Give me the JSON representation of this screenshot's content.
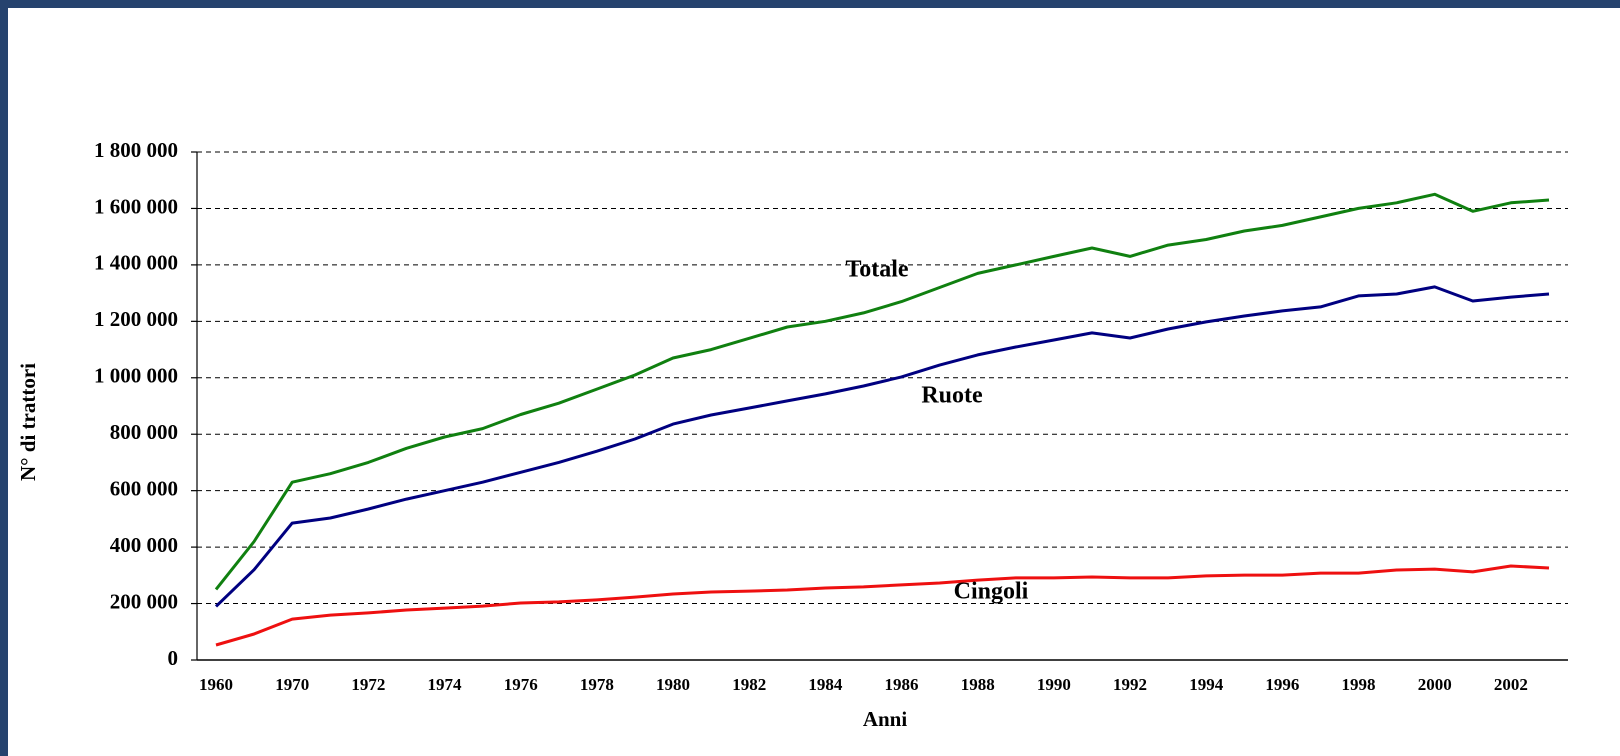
{
  "chart_data": {
    "type": "line",
    "x_label": "Anni",
    "y_label": "N° di trattori",
    "categories": [
      "1960",
      null,
      "1970",
      null,
      "1972",
      null,
      "1974",
      null,
      "1976",
      null,
      "1978",
      null,
      "1980",
      null,
      "1982",
      null,
      "1984",
      null,
      "1986",
      null,
      "1988",
      null,
      "1990",
      null,
      "1992",
      null,
      "1994",
      null,
      "1996",
      null,
      "1998",
      null,
      "2000",
      null,
      "2002",
      null
    ],
    "series": [
      {
        "name": "Totale",
        "color": "#108010",
        "values": [
          250000,
          420000,
          630000,
          660000,
          700000,
          750000,
          790000,
          820000,
          870000,
          910000,
          960000,
          1010000,
          1070000,
          1100000,
          1140000,
          1180000,
          1200000,
          1230000,
          1270000,
          1320000,
          1370000,
          1400000,
          1430000,
          1460000,
          1430000,
          1470000,
          1490000,
          1520000,
          1540000,
          1570000,
          1600000,
          1620000,
          1650000,
          1590000,
          1620000,
          1630000
        ]
      },
      {
        "name": "Ruote",
        "color": "#000080",
        "values": [
          190000,
          320000,
          485000,
          503000,
          535000,
          570000,
          600000,
          630000,
          665000,
          700000,
          740000,
          783000,
          836000,
          868000,
          893000,
          918000,
          943000,
          971000,
          1003000,
          1045000,
          1081000,
          1109000,
          1134000,
          1159000,
          1141000,
          1173000,
          1198000,
          1219000,
          1237000,
          1251000,
          1290000,
          1297000,
          1322000,
          1272000,
          1286000,
          1297000
        ]
      },
      {
        "name": "Cingoli",
        "color": "#ee1010",
        "values": [
          53000,
          92000,
          145000,
          159000,
          167000,
          177000,
          184000,
          191000,
          202000,
          206000,
          213000,
          223000,
          234000,
          241000,
          244000,
          248000,
          255000,
          259000,
          266000,
          273000,
          283000,
          291000,
          291000,
          294000,
          291000,
          291000,
          298000,
          301000,
          301000,
          308000,
          308000,
          319000,
          322000,
          312000,
          333000,
          326000
        ]
      }
    ],
    "ylim": [
      0,
      1800000
    ],
    "yticks": [
      0,
      {
        "value": 200000,
        "label": "200 000"
      },
      {
        "value": 400000,
        "label": "400 000"
      },
      {
        "value": 600000,
        "label": "600 000"
      },
      {
        "value": 800000,
        "label": "800 000"
      },
      {
        "value": 1000000,
        "label": "1 000 000"
      },
      {
        "value": 1200000,
        "label": "1 200 000"
      },
      {
        "value": 1400000,
        "label": "1 400 000"
      },
      {
        "value": 1600000,
        "label": "1 600 000"
      },
      {
        "value": 1800000,
        "label": "1 800 000"
      }
    ],
    "grid": true
  }
}
